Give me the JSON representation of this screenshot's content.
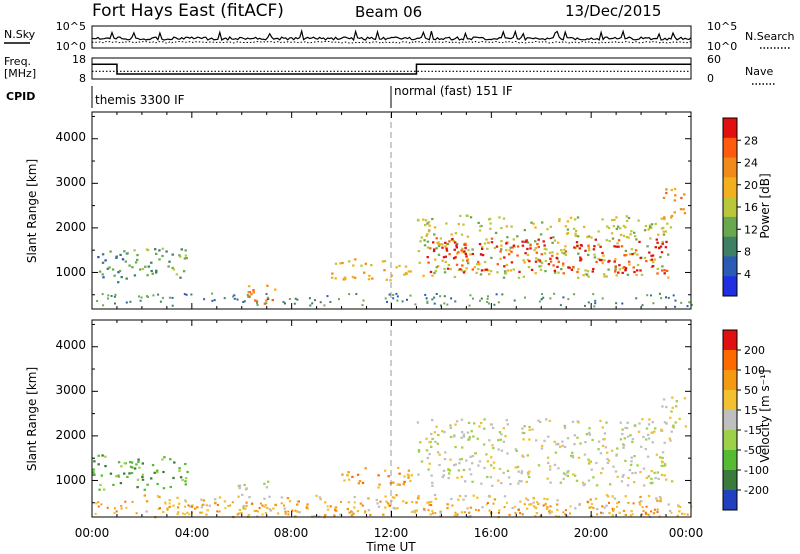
{
  "header": {
    "site": "Fort Hays East (fitACF)",
    "beam": "Beam 06",
    "date": "13/Dec/2015"
  },
  "noise_panel": {
    "left_label": "N.Sky",
    "right_label": "N.Search",
    "left_ticks": [
      "10^5",
      "10^0"
    ],
    "right_ticks": [
      "10^5",
      "10^0"
    ]
  },
  "freq_panel": {
    "left_label_line1": "Freq.",
    "left_label_line2": "[MHz]",
    "left_ticks": [
      "18",
      "8"
    ],
    "right_ticks": [
      "60",
      "0"
    ],
    "right_label": "Nave",
    "freq_steps": [
      {
        "from": 0.0,
        "to": 1.0,
        "freq": 15.0
      },
      {
        "from": 1.0,
        "to": 13.0,
        "freq": 10.4
      },
      {
        "from": 13.0,
        "to": 24.0,
        "freq": 15.0
      }
    ],
    "nave_level": 22
  },
  "cpid": {
    "label": "CPID",
    "modes": [
      {
        "start": 0,
        "text": "themis 3300 IF"
      },
      {
        "start": 12,
        "text": "normal (fast) 151 IF"
      }
    ]
  },
  "x_axis": {
    "label": "Time UT",
    "ticks": [
      "00:00",
      "04:00",
      "08:00",
      "12:00",
      "16:00",
      "20:00",
      "00:00"
    ]
  },
  "power_panel": {
    "ylabel": "Slant Range [km]",
    "y_ticks": [
      "1000",
      "2000",
      "3000",
      "4000"
    ],
    "colorbar_label": "Power [dB]",
    "colorbar_ticks": [
      "4",
      "8",
      "12",
      "16",
      "20",
      "24",
      "28"
    ]
  },
  "velocity_panel": {
    "ylabel": "Slant Range [km]",
    "y_ticks": [
      "1000",
      "2000",
      "3000",
      "4000"
    ],
    "colorbar_label": "Velocity [m s⁻¹]",
    "colorbar_ticks": [
      "200",
      "100",
      "50",
      "15",
      "-15",
      "-50",
      "-100",
      "-200"
    ]
  },
  "colors": {
    "power_scale": [
      "#2030e0",
      "#2a5bb5",
      "#3f7f66",
      "#6aa84f",
      "#b8c83a",
      "#f2b01e",
      "#f08a1a",
      "#ff5a10",
      "#e01010"
    ],
    "velocity_scale": [
      "#2040c0",
      "#3a7a3a",
      "#55bb33",
      "#9ed04a",
      "#bfbfbf",
      "#f2c030",
      "#f39a10",
      "#ff6a00",
      "#e01010"
    ]
  },
  "chart_data": {
    "type": "heatmap",
    "title": "Fort Hays East (fitACF)",
    "x_range_hours": [
      0,
      24
    ],
    "y_range_km": [
      180,
      4600
    ],
    "xlabel": "Time UT",
    "ylabel": "Slant Range [km]",
    "power_regions": [
      {
        "t0": 0.0,
        "t1": 1.4,
        "r0": 800,
        "r1": 1500,
        "level": 2
      },
      {
        "t0": 1.0,
        "t1": 3.8,
        "r0": 900,
        "r1": 1600,
        "level": 3
      },
      {
        "t0": 6.2,
        "t1": 7.5,
        "r0": 350,
        "r1": 750,
        "level": 6
      },
      {
        "t0": 6.4,
        "t1": 7.3,
        "r0": 300,
        "r1": 500,
        "level": 8
      },
      {
        "t0": 9.5,
        "t1": 12.8,
        "r0": 850,
        "r1": 1350,
        "level": 5
      },
      {
        "t0": 13.0,
        "t1": 23.2,
        "r0": 900,
        "r1": 2300,
        "level": 4
      },
      {
        "t0": 13.4,
        "t1": 23.0,
        "r0": 1000,
        "r1": 1800,
        "level": 8
      },
      {
        "t0": 22.8,
        "t1": 23.8,
        "r0": 2200,
        "r1": 2900,
        "level": 6
      }
    ],
    "velocity_regions": [
      {
        "t0": 0.0,
        "t1": 3.8,
        "r0": 800,
        "r1": 1600,
        "level": 2
      },
      {
        "t0": 5.8,
        "t1": 7.2,
        "r0": 350,
        "r1": 1000,
        "level": 4
      },
      {
        "t0": 9.8,
        "t1": 12.8,
        "r0": 850,
        "r1": 1350,
        "level": 6
      },
      {
        "t0": 13.0,
        "t1": 23.2,
        "r0": 900,
        "r1": 2400,
        "level": 4
      },
      {
        "t0": 22.8,
        "t1": 23.8,
        "r0": 2200,
        "r1": 2900,
        "level": 4
      },
      {
        "t0": 2.0,
        "t1": 23.5,
        "r0": 200,
        "r1": 700,
        "level": 5
      }
    ]
  }
}
